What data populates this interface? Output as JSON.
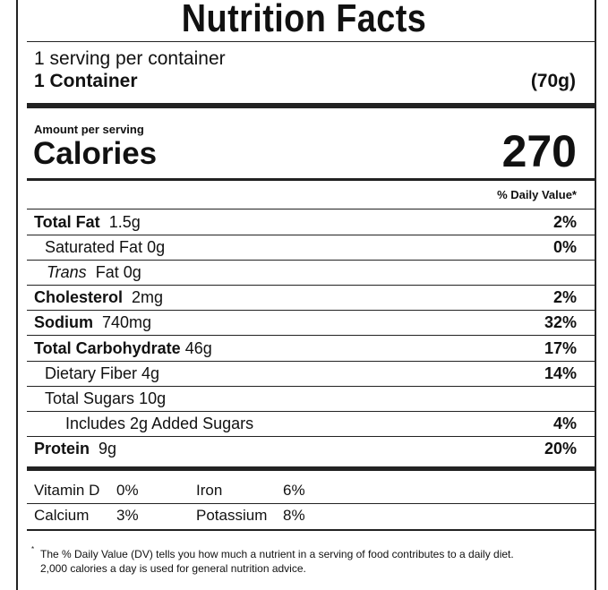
{
  "title": "Nutrition Facts",
  "servings_per_container": "1 serving per container",
  "serving_size": {
    "label": "1 Container",
    "amount": "(70g)"
  },
  "amount_per_serving": "Amount per serving",
  "calories": {
    "label": "Calories",
    "value": 270
  },
  "daily_value_header": "% Daily Value*",
  "nutrients": [
    {
      "name": "Total Fat",
      "amount": "1.5g",
      "dv": "2%"
    },
    {
      "name": "Saturated Fat",
      "amount": "0g",
      "dv": "0%"
    },
    {
      "prefix": "Trans",
      "name": "Fat",
      "amount": "0g"
    },
    {
      "name": "Cholesterol",
      "amount": "2mg",
      "dv": "2%"
    },
    {
      "name": "Sodium",
      "amount": "740mg",
      "dv": "32%"
    },
    {
      "name": "Total Carbohydrate",
      "amount": "46g",
      "dv": "17%"
    },
    {
      "name": "Dietary Fiber",
      "amount": "4g",
      "dv": "14%"
    },
    {
      "name": "Total Sugars",
      "amount": "10g"
    },
    {
      "name": "Includes 2g Added Sugars",
      "dv": "4%"
    },
    {
      "name": "Protein",
      "amount": "9g",
      "dv": "20%"
    }
  ],
  "minerals": [
    {
      "name": "Vitamin D",
      "dv": "0%"
    },
    {
      "name": "Iron",
      "dv": "6%"
    },
    {
      "name": "Calcium",
      "dv": "3%"
    },
    {
      "name": "Potassium",
      "dv": "8%"
    }
  ],
  "footnote": {
    "marker": "*",
    "lines": [
      "The % Daily Value (DV) tells you how much a nutrient in a serving of food contributes to a daily diet.",
      "2,000 calories a day is used for general nutrition advice."
    ]
  }
}
